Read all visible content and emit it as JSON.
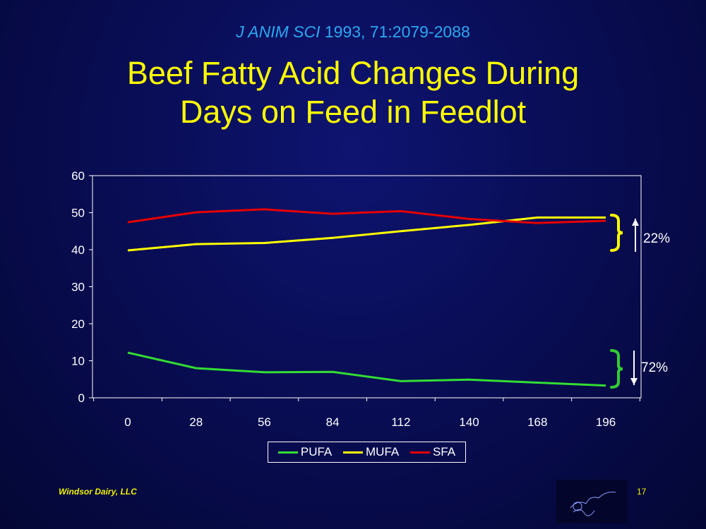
{
  "slide": {
    "citation_journal": "J ANIM SCI",
    "citation_rest": " 1993, 71:2079-2088",
    "title_line1": "Beef Fatty Acid Changes During",
    "title_line2": "Days on Feed in Feedlot",
    "footer": "Windsor Dairy, LLC",
    "page_number": "17"
  },
  "annotations": {
    "mufa_change": "22%",
    "pufa_change": "72%"
  },
  "colors": {
    "PUFA": "#33dd33",
    "MUFA": "#ffff00",
    "SFA": "#e60000",
    "mufa_brace": "#ffff00",
    "pufa_brace": "#33cc33"
  },
  "chart_data": {
    "type": "line",
    "x": [
      0,
      28,
      56,
      84,
      112,
      140,
      168,
      196
    ],
    "x_ticks": [
      "0",
      "28",
      "56",
      "84",
      "112",
      "140",
      "168",
      "196"
    ],
    "y_ticks": [
      "0",
      "10",
      "20",
      "30",
      "40",
      "50",
      "60"
    ],
    "ylim": [
      0,
      60
    ],
    "series": [
      {
        "name": "PUFA",
        "values": [
          12.2,
          8.0,
          6.9,
          7.0,
          4.5,
          4.9,
          4.1,
          3.3
        ]
      },
      {
        "name": "MUFA",
        "values": [
          39.8,
          41.5,
          41.8,
          43.2,
          45.0,
          46.7,
          48.7,
          48.7
        ]
      },
      {
        "name": "SFA",
        "values": [
          47.4,
          50.1,
          50.9,
          49.7,
          50.4,
          48.3,
          47.2,
          47.8
        ]
      }
    ],
    "legend_position": "bottom",
    "grid": false
  }
}
